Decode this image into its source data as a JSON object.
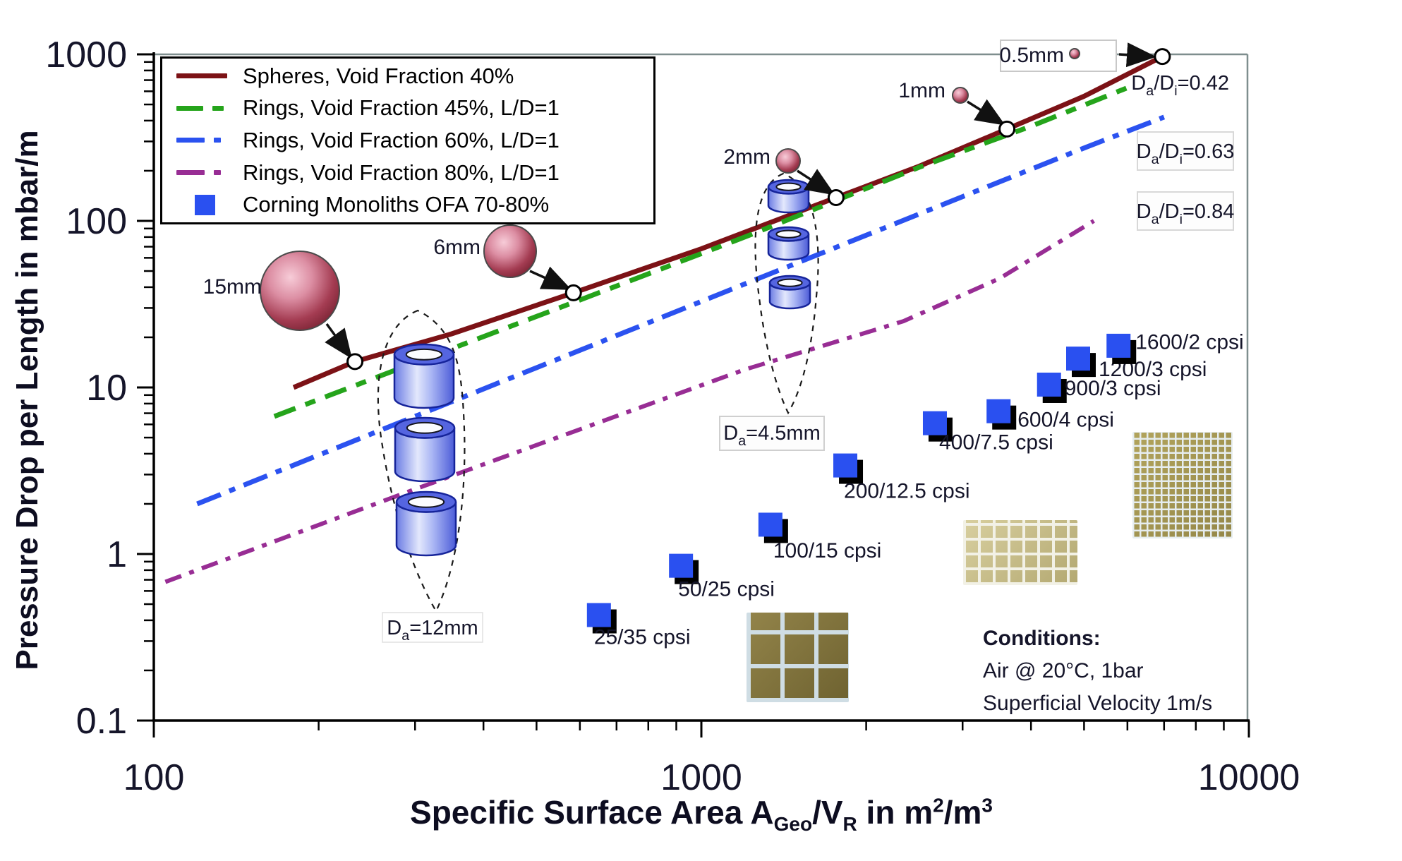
{
  "axes": {
    "x": {
      "title_parts": {
        "main": "Specific Surface Area A",
        "sub1": "Geo",
        "mid": "/V",
        "sub2": "R",
        "tail": " in m",
        "sup1": "2",
        "tail2": "/m",
        "sup2": "3"
      },
      "tick_labels": [
        "100",
        "1000",
        "10000"
      ],
      "scale": "log",
      "range": [
        100,
        10000
      ]
    },
    "y": {
      "title": "Pressure Drop per Length in mbar/m",
      "tick_labels": [
        "1000",
        "100",
        "10",
        "1",
        "0.1"
      ],
      "scale": "log",
      "range": [
        0.1,
        1000
      ]
    }
  },
  "legend": [
    {
      "label": "Spheres, Void Fraction 40%",
      "color": "#7c1216",
      "style": "solid"
    },
    {
      "label": "Rings, Void Fraction 45%, L/D=1",
      "color": "#25a41b",
      "style": "dash"
    },
    {
      "label": "Rings, Void Fraction 60%, L/D=1",
      "color": "#2b52f0",
      "style": "dashdot"
    },
    {
      "label": "Rings, Void Fraction 80%, L/D=1",
      "color": "#982d94",
      "style": "dashdot"
    },
    {
      "label": "Corning Monoliths OFA 70-80%",
      "color": "#2a50f0",
      "style": "square"
    }
  ],
  "chart_data": {
    "type": "line",
    "xlabel": "Specific Surface Area A_Geo/V_R in m2/m3",
    "ylabel": "Pressure Drop per Length in mbar/m",
    "xscale": "log",
    "yscale": "log",
    "xlim": [
      100,
      10000
    ],
    "ylim": [
      0.1,
      1000
    ],
    "grid": false,
    "legend_position": "top-left",
    "series": [
      {
        "name": "Spheres, Void Fraction 40%",
        "color": "#7c1216",
        "dash": "solid",
        "points": [
          [
            180,
            10
          ],
          [
            233,
            14.3
          ],
          [
            350,
            21
          ],
          [
            584,
            37
          ],
          [
            1000,
            68
          ],
          [
            1762,
            138
          ],
          [
            2500,
            213
          ],
          [
            3615,
            356
          ],
          [
            5000,
            560
          ],
          [
            6950,
            970
          ]
        ]
      },
      {
        "name": "Rings, Void Fraction 45%, L/D=1",
        "color": "#25a41b",
        "dash": "dash",
        "points": [
          [
            166,
            6.7
          ],
          [
            300,
            14.1
          ],
          [
            600,
            33.5
          ],
          [
            1200,
            80
          ],
          [
            2500,
            210
          ],
          [
            4000,
            370
          ],
          [
            6000,
            630
          ]
        ]
      },
      {
        "name": "Rings, Void Fraction 60%, L/D=1",
        "color": "#2b52f0",
        "dash": "dashdot",
        "points": [
          [
            120,
            2.0
          ],
          [
            300,
            6.7
          ],
          [
            600,
            16.7
          ],
          [
            1200,
            41.8
          ],
          [
            2500,
            110
          ],
          [
            5000,
            274
          ],
          [
            7000,
            420
          ]
        ]
      },
      {
        "name": "Rings, Void Fraction 80%, L/D=1",
        "color": "#982d94",
        "dash": "dashdot",
        "points": [
          [
            105,
            0.68
          ],
          [
            300,
            2.45
          ],
          [
            600,
            5.6
          ],
          [
            1200,
            12.8
          ],
          [
            2340,
            25
          ],
          [
            3500,
            45
          ],
          [
            5210,
            100
          ]
        ]
      }
    ],
    "scatter": {
      "name": "Corning Monoliths OFA 70-80%",
      "color": "#2a50f0",
      "points": [
        {
          "label": "25/35 cpsi",
          "x": 650,
          "y": 0.43
        },
        {
          "label": "50/25 cpsi",
          "x": 918,
          "y": 0.85
        },
        {
          "label": "100/15 cpsi",
          "x": 1337,
          "y": 1.5
        },
        {
          "label": "200/12.5 cpsi",
          "x": 1832,
          "y": 3.4
        },
        {
          "label": "400/7.5 cpsi",
          "x": 2670,
          "y": 6.1
        },
        {
          "label": "600/4 cpsi",
          "x": 3490,
          "y": 7.2
        },
        {
          "label": "900/3 cpsi",
          "x": 4315,
          "y": 10.4
        },
        {
          "label": "1200/3 cpsi",
          "x": 4877,
          "y": 14.9
        },
        {
          "label": "1600/2 cpsi",
          "x": 5780,
          "y": 17.8
        }
      ]
    },
    "sphere_markers": [
      {
        "label": "15mm",
        "x": 233,
        "y": 14.3
      },
      {
        "label": "6mm",
        "x": 584,
        "y": 37
      },
      {
        "label": "2mm",
        "x": 1762,
        "y": 138
      },
      {
        "label": "1mm",
        "x": 3615,
        "y": 356
      },
      {
        "label": "0.5mm",
        "x": 6950,
        "y": 970
      }
    ],
    "ratio_labels": [
      {
        "parts": [
          {
            "t": "D"
          },
          {
            "t": "a",
            "sub": true
          },
          {
            "t": "/D"
          },
          {
            "t": "i",
            "sub": true
          },
          {
            "t": "=0.42"
          }
        ]
      },
      {
        "parts": [
          {
            "t": "D"
          },
          {
            "t": "a",
            "sub": true
          },
          {
            "t": "/D"
          },
          {
            "t": "i",
            "sub": true
          },
          {
            "t": "=0.63"
          }
        ]
      },
      {
        "parts": [
          {
            "t": "D"
          },
          {
            "t": "a",
            "sub": true
          },
          {
            "t": "/D"
          },
          {
            "t": "i",
            "sub": true
          },
          {
            "t": "=0.84"
          }
        ]
      }
    ],
    "ring_labels": [
      {
        "parts": [
          {
            "t": "D"
          },
          {
            "t": "a",
            "sub": true
          },
          {
            "t": "=12mm"
          }
        ]
      },
      {
        "parts": [
          {
            "t": "D"
          },
          {
            "t": "a",
            "sub": true
          },
          {
            "t": "=4.5mm"
          }
        ]
      }
    ]
  },
  "conditions": {
    "title": "Conditions:",
    "lines": [
      "Air @ 20°C, 1bar",
      "Superficial Velocity 1m/s"
    ]
  }
}
